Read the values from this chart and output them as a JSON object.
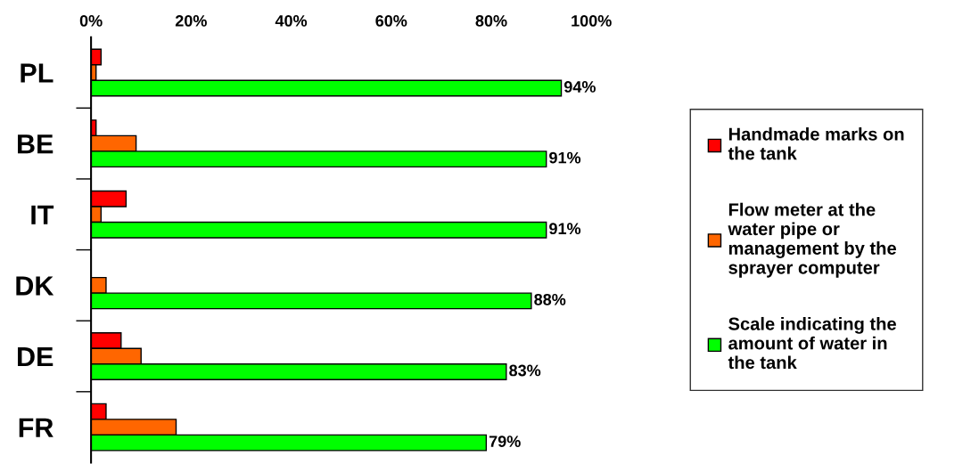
{
  "chart_data": {
    "type": "bar",
    "orientation": "horizontal",
    "categories": [
      "PL",
      "BE",
      "IT",
      "DK",
      "DE",
      "FR"
    ],
    "series": [
      {
        "name": "Handmade marks on the tank",
        "color": "#ff0000",
        "values": [
          2,
          1,
          7,
          null,
          6,
          3
        ]
      },
      {
        "name": "Flow meter at the water pipe or management by the sprayer computer",
        "color": "#ff6600",
        "values": [
          1,
          9,
          2,
          3,
          10,
          17
        ]
      },
      {
        "name": "Scale indicating the amount of water in the tank",
        "color": "#00ff00",
        "values": [
          94,
          91,
          91,
          88,
          83,
          79
        ],
        "value_labels": [
          "94%",
          "91%",
          "91%",
          "88%",
          "83%",
          "79%"
        ]
      }
    ],
    "xlim": [
      0,
      100
    ],
    "xticks": [
      {
        "value": 0,
        "label": "0%"
      },
      {
        "value": 20,
        "label": "20%"
      },
      {
        "value": 40,
        "label": "40%"
      },
      {
        "value": 60,
        "label": "60%"
      },
      {
        "value": 80,
        "label": "80%"
      },
      {
        "value": 100,
        "label": "100%"
      }
    ],
    "grid": false,
    "legend": "right"
  }
}
